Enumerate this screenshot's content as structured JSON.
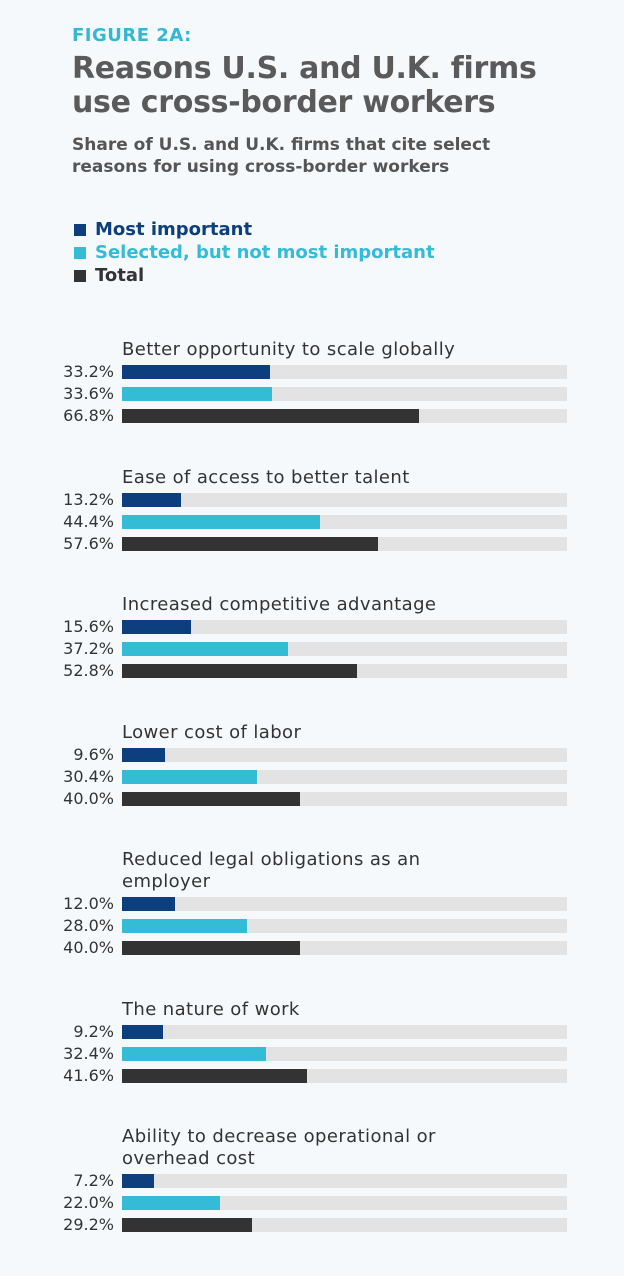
{
  "chart_data": {
    "type": "bar",
    "orientation": "horizontal",
    "label": "FIGURE 2A:",
    "title": "Reasons U.S. and U.K. firms use cross-border workers",
    "subtitle": "Share of U.S. and U.K. firms that cite select reasons for using cross-border workers",
    "categories": [
      "Better opportunity to scale globally",
      "Ease of access to better talent",
      "Increased competitive advantage",
      "Lower cost of labor",
      "Reduced legal obligations as an employer",
      "The nature of work",
      "Ability to decrease operational or overhead cost"
    ],
    "xlim": [
      0,
      100
    ],
    "series": [
      {
        "name": "Most important",
        "color": "#0d3f7e",
        "values": [
          33.2,
          13.2,
          15.6,
          9.6,
          12.0,
          9.2,
          7.2
        ],
        "value_labels": [
          "33.2%",
          "13.2%",
          "15.6%",
          "9.6%",
          "12.0%",
          "9.2%",
          "7.2%"
        ]
      },
      {
        "name": "Selected, but not most important",
        "color": "#34bcd6",
        "values": [
          33.6,
          44.4,
          37.2,
          30.4,
          28.0,
          32.4,
          22.0
        ],
        "value_labels": [
          "33.6%",
          "44.4%",
          "37.2%",
          "30.4%",
          "28.0%",
          "32.4%",
          "22.0%"
        ]
      },
      {
        "name": "Total",
        "color": "#333333",
        "values": [
          66.8,
          57.6,
          52.8,
          40.0,
          40.0,
          41.6,
          29.2
        ],
        "value_labels": [
          "66.8%",
          "57.6%",
          "52.8%",
          "40.0%",
          "40.0%",
          "41.6%",
          "29.2%"
        ]
      }
    ]
  }
}
